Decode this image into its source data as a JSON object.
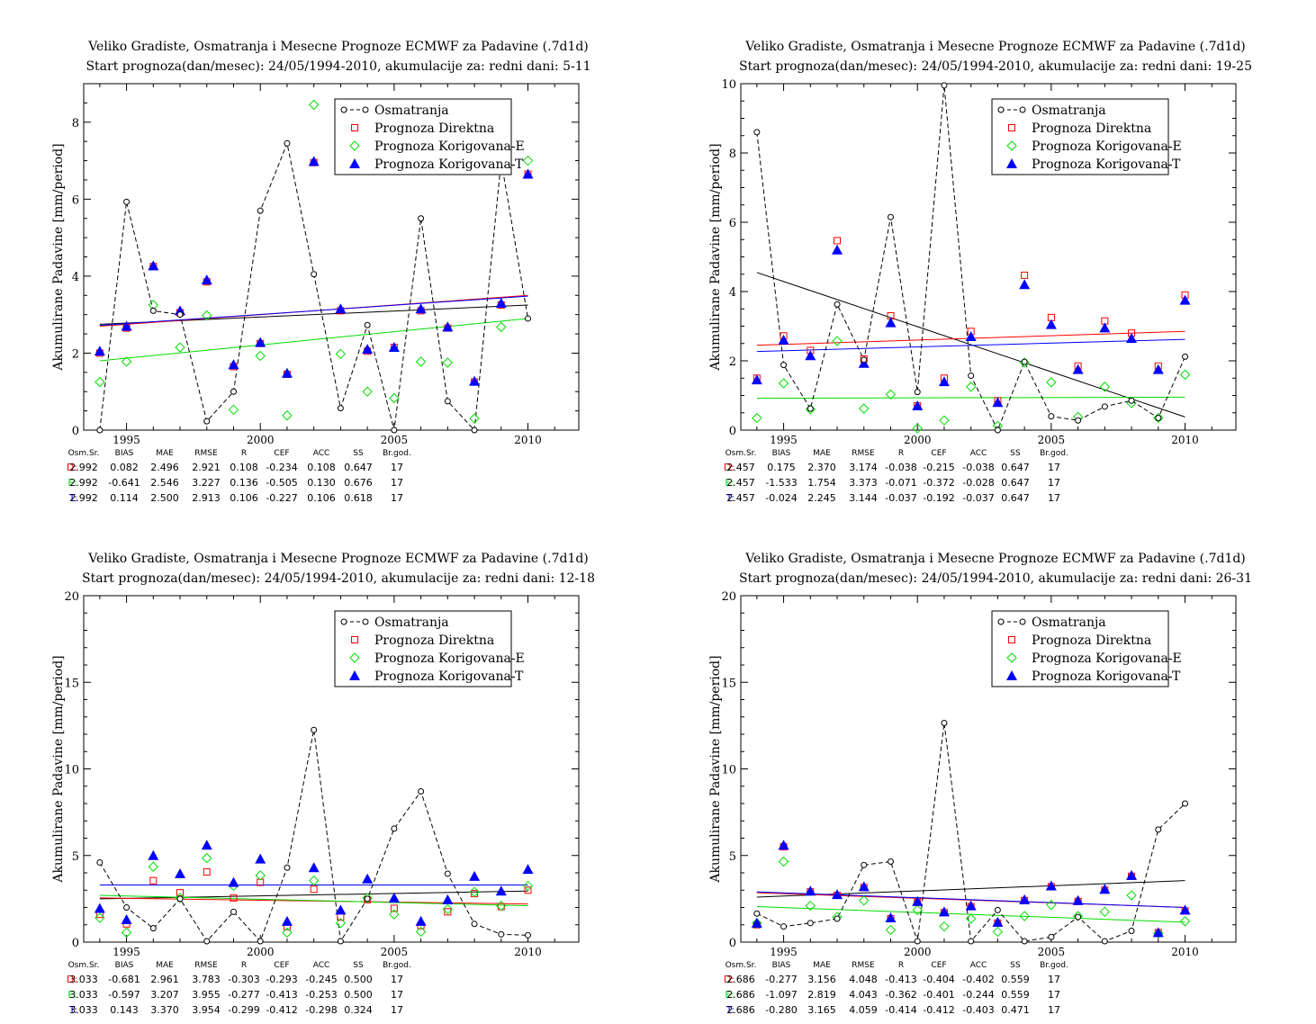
{
  "legend": {
    "observed": "Osmatranja",
    "direct": "Prognoza Direktna",
    "corr_e": "Prognoza Korigovana-E",
    "corr_t": "Prognoza Korigovana-T"
  },
  "colors": {
    "observed": "#000000",
    "direct": "#ff0000",
    "corr_e": "#00dd00",
    "corr_t": "#0000ff"
  },
  "stats_header": [
    "Osm.Sr.",
    "BIAS",
    "MAE",
    "RMSE",
    "R",
    "CEF",
    "ACC",
    "SS",
    "Br.god."
  ],
  "chart_data": [
    {
      "type": "line",
      "title": "Veliko Gradiste, Osmatranja i Mesecne Prognoze ECMWF za Padavine (.7d1d)",
      "subtitle": "Start prognoza(dan/mesec): 24/05/1994-2010, akumulacije za: redni dani: 5-11",
      "ylabel": "Akumulirane Padavine [mm/period]",
      "xlim": [
        1993.4,
        2011.9
      ],
      "ylim": [
        0,
        9
      ],
      "xticks": [
        1995,
        2000,
        2005,
        2010
      ],
      "yticks": [
        0,
        2,
        4,
        6,
        8
      ],
      "x": [
        1994,
        1995,
        1996,
        1997,
        1998,
        1999,
        2000,
        2001,
        2002,
        2003,
        2004,
        2005,
        2006,
        2007,
        2008,
        2009,
        2010
      ],
      "series": [
        {
          "name": "Osmatranja",
          "values": [
            0.0,
            5.93,
            3.1,
            3.0,
            0.23,
            1.0,
            5.7,
            7.45,
            4.05,
            0.57,
            2.73,
            0.0,
            5.5,
            0.75,
            0.0,
            7.0,
            2.9
          ]
        },
        {
          "name": "Prognoza Direktna",
          "values": [
            2.0,
            2.65,
            4.25,
            3.05,
            3.85,
            1.65,
            2.25,
            1.45,
            6.95,
            3.1,
            2.05,
            2.15,
            3.1,
            2.65,
            1.25,
            3.25,
            6.65
          ]
        },
        {
          "name": "Prognoza Korigovana-E",
          "values": [
            1.25,
            1.78,
            3.25,
            2.15,
            2.98,
            0.53,
            1.93,
            0.38,
            8.45,
            1.98,
            1.0,
            0.83,
            1.78,
            1.75,
            0.3,
            2.68,
            7.0
          ]
        },
        {
          "name": "Prognoza Korigovana-T",
          "values": [
            2.05,
            2.7,
            4.27,
            3.1,
            3.9,
            1.7,
            2.28,
            1.48,
            6.98,
            3.15,
            2.1,
            2.15,
            3.15,
            2.68,
            1.27,
            3.3,
            6.65
          ]
        }
      ],
      "trends": {
        "observed": [
          2.75,
          3.25
        ],
        "direct": [
          2.7,
          3.5
        ],
        "corr_e": [
          1.8,
          2.9
        ],
        "corr_t": [
          2.72,
          3.48
        ]
      },
      "stats": [
        {
          "label": "D:",
          "values": [
            "2.992",
            "0.082",
            "2.496",
            "2.921",
            "0.108",
            "-0.234",
            "0.108",
            "0.647",
            "17"
          ]
        },
        {
          "label": "E:",
          "values": [
            "2.992",
            "-0.641",
            "2.546",
            "3.227",
            "0.136",
            "-0.505",
            "0.130",
            "0.676",
            "17"
          ]
        },
        {
          "label": "T:",
          "values": [
            "2.992",
            "0.114",
            "2.500",
            "2.913",
            "0.106",
            "-0.227",
            "0.106",
            "0.618",
            "17"
          ]
        }
      ]
    },
    {
      "type": "line",
      "title": "Veliko Gradiste, Osmatranja i Mesecne Prognoze ECMWF za Padavine (.7d1d)",
      "subtitle": "Start prognoza(dan/mesec): 24/05/1994-2010, akumulacije za: redni dani: 19-25",
      "ylabel": "Akumulirane Padavine [mm/period]",
      "xlim": [
        1993.4,
        2011.9
      ],
      "ylim": [
        0,
        10
      ],
      "xticks": [
        1995,
        2000,
        2005,
        2010
      ],
      "yticks": [
        0,
        2,
        4,
        6,
        8,
        10
      ],
      "x": [
        1994,
        1995,
        1996,
        1997,
        1998,
        1999,
        2000,
        2001,
        2002,
        2003,
        2004,
        2005,
        2006,
        2007,
        2008,
        2009,
        2010
      ],
      "series": [
        {
          "name": "Osmatranja",
          "values": [
            8.6,
            1.88,
            0.62,
            3.63,
            2.03,
            6.15,
            1.1,
            9.95,
            1.57,
            0.0,
            1.97,
            0.4,
            0.28,
            0.68,
            0.85,
            0.35,
            2.12
          ]
        },
        {
          "name": "Prognoza Direktna",
          "values": [
            1.5,
            2.72,
            2.3,
            5.47,
            2.05,
            3.3,
            0.7,
            1.5,
            2.85,
            0.85,
            4.47,
            3.25,
            1.85,
            3.15,
            2.8,
            1.85,
            3.9
          ]
        },
        {
          "name": "Prognoza Korigovana-E",
          "values": [
            0.35,
            1.35,
            0.6,
            2.57,
            0.62,
            1.03,
            0.05,
            0.28,
            1.25,
            0.12,
            1.95,
            1.38,
            0.38,
            1.25,
            0.78,
            0.35,
            1.6
          ]
        },
        {
          "name": "Prognoza Korigovana-T",
          "values": [
            1.45,
            2.6,
            2.15,
            5.2,
            1.93,
            3.1,
            0.7,
            1.4,
            2.7,
            0.8,
            4.2,
            3.05,
            1.75,
            2.95,
            2.65,
            1.75,
            3.75
          ]
        }
      ],
      "trends": {
        "observed": [
          4.55,
          0.38
        ],
        "direct": [
          2.45,
          2.85
        ],
        "corr_e": [
          0.92,
          0.95
        ],
        "corr_t": [
          2.27,
          2.62
        ]
      },
      "stats": [
        {
          "label": "D:",
          "values": [
            "2.457",
            "0.175",
            "2.370",
            "3.174",
            "-0.038",
            "-0.215",
            "-0.038",
            "0.647",
            "17"
          ]
        },
        {
          "label": "E:",
          "values": [
            "2.457",
            "-1.533",
            "1.754",
            "3.373",
            "-0.071",
            "-0.372",
            "-0.028",
            "0.647",
            "17"
          ]
        },
        {
          "label": "T:",
          "values": [
            "2.457",
            "-0.024",
            "2.245",
            "3.144",
            "-0.037",
            "-0.192",
            "-0.037",
            "0.647",
            "17"
          ]
        }
      ]
    },
    {
      "type": "line",
      "title": "Veliko Gradiste, Osmatranja i Mesecne Prognoze ECMWF za Padavine (.7d1d)",
      "subtitle": "Start prognoza(dan/mesec): 24/05/1994-2010, akumulacije za: redni dani: 12-18",
      "ylabel": "Akumulirane Padavine [mm/period]",
      "xlim": [
        1993.4,
        2011.9
      ],
      "ylim": [
        0,
        20
      ],
      "xticks": [
        1995,
        2000,
        2005,
        2010
      ],
      "yticks": [
        0,
        5,
        10,
        15,
        20
      ],
      "x": [
        1994,
        1995,
        1996,
        1997,
        1998,
        1999,
        2000,
        2001,
        2002,
        2003,
        2004,
        2005,
        2006,
        2007,
        2008,
        2009,
        2010
      ],
      "series": [
        {
          "name": "Osmatranja",
          "values": [
            4.6,
            2.0,
            0.8,
            2.5,
            0.05,
            1.75,
            0.05,
            4.3,
            12.25,
            0.05,
            2.5,
            6.55,
            8.7,
            3.95,
            1.05,
            0.45,
            0.4
          ]
        },
        {
          "name": "Prognoza Direktna",
          "values": [
            1.6,
            1.05,
            3.55,
            2.85,
            4.05,
            2.55,
            3.45,
            0.9,
            3.05,
            1.45,
            2.45,
            1.95,
            0.95,
            1.75,
            2.8,
            2.05,
            3.0
          ]
        },
        {
          "name": "Prognoza Korigovana-E",
          "values": [
            1.4,
            0.55,
            4.35,
            2.55,
            4.85,
            3.25,
            3.85,
            0.55,
            3.55,
            1.1,
            2.55,
            1.6,
            0.6,
            1.9,
            2.9,
            2.1,
            3.25
          ]
        },
        {
          "name": "Prognoza Korigovana-T",
          "values": [
            1.95,
            1.3,
            5.0,
            3.95,
            5.6,
            3.45,
            4.8,
            1.2,
            4.3,
            1.85,
            3.65,
            2.55,
            1.2,
            2.45,
            3.8,
            2.95,
            4.2
          ]
        }
      ],
      "trends": {
        "observed": [
          2.5,
          2.95
        ],
        "direct": [
          2.55,
          2.2
        ],
        "corr_e": [
          2.7,
          2.1
        ],
        "corr_t": [
          3.3,
          3.3
        ]
      },
      "stats": [
        {
          "label": "D:",
          "values": [
            "3.033",
            "-0.681",
            "2.961",
            "3.783",
            "-0.303",
            "-0.293",
            "-0.245",
            "0.500",
            "17"
          ]
        },
        {
          "label": "E:",
          "values": [
            "3.033",
            "-0.597",
            "3.207",
            "3.955",
            "-0.277",
            "-0.413",
            "-0.253",
            "0.500",
            "17"
          ]
        },
        {
          "label": "T:",
          "values": [
            "3.033",
            "0.143",
            "3.370",
            "3.954",
            "-0.299",
            "-0.412",
            "-0.298",
            "0.324",
            "17"
          ]
        }
      ]
    },
    {
      "type": "line",
      "title": "Veliko Gradiste, Osmatranja i Mesecne Prognoze ECMWF za Padavine (.7d1d)",
      "subtitle": "Start prognoza(dan/mesec): 24/05/1994-2010, akumulacije za: redni dani: 26-31",
      "ylabel": "Akumulirane Padavine [mm/period]",
      "xlim": [
        1993.4,
        2011.9
      ],
      "ylim": [
        0,
        20
      ],
      "xticks": [
        1995,
        2000,
        2005,
        2010
      ],
      "yticks": [
        0,
        5,
        10,
        15,
        20
      ],
      "x": [
        1994,
        1995,
        1996,
        1997,
        1998,
        1999,
        2000,
        2001,
        2002,
        2003,
        2004,
        2005,
        2006,
        2007,
        2008,
        2009,
        2010
      ],
      "series": [
        {
          "name": "Osmatranja",
          "values": [
            1.65,
            0.9,
            1.1,
            1.35,
            4.45,
            4.65,
            0.05,
            12.65,
            0.05,
            1.85,
            0.05,
            0.3,
            1.45,
            0.05,
            0.65,
            6.5,
            8.0
          ]
        },
        {
          "name": "Prognoza Direktna",
          "values": [
            1.0,
            5.5,
            2.9,
            2.7,
            3.15,
            1.35,
            2.3,
            1.7,
            2.05,
            1.1,
            2.4,
            3.2,
            2.35,
            3.0,
            3.8,
            0.55,
            1.8
          ]
        },
        {
          "name": "Prognoza Korigovana-E",
          "values": [
            1.1,
            4.65,
            2.1,
            1.45,
            2.4,
            0.7,
            1.85,
            0.9,
            1.35,
            0.6,
            1.5,
            2.15,
            1.5,
            1.75,
            2.7,
            0.5,
            1.2
          ]
        },
        {
          "name": "Prognoza Korigovana-T",
          "values": [
            1.1,
            5.6,
            2.95,
            2.75,
            3.2,
            1.4,
            2.35,
            1.75,
            2.1,
            1.15,
            2.45,
            3.25,
            2.4,
            3.05,
            3.85,
            0.55,
            1.85
          ]
        }
      ],
      "trends": {
        "observed": [
          2.6,
          3.55
        ],
        "direct": [
          2.85,
          2.0
        ],
        "corr_e": [
          2.05,
          1.15
        ],
        "corr_t": [
          2.9,
          2.0
        ]
      },
      "stats": [
        {
          "label": "D:",
          "values": [
            "2.686",
            "-0.277",
            "3.156",
            "4.048",
            "-0.413",
            "-0.404",
            "-0.402",
            "0.559",
            "17"
          ]
        },
        {
          "label": "E:",
          "values": [
            "2.686",
            "-1.097",
            "2.819",
            "4.043",
            "-0.362",
            "-0.401",
            "-0.244",
            "0.559",
            "17"
          ]
        },
        {
          "label": "T:",
          "values": [
            "2.686",
            "-0.280",
            "3.165",
            "4.059",
            "-0.414",
            "-0.412",
            "-0.403",
            "0.471",
            "17"
          ]
        }
      ]
    }
  ]
}
